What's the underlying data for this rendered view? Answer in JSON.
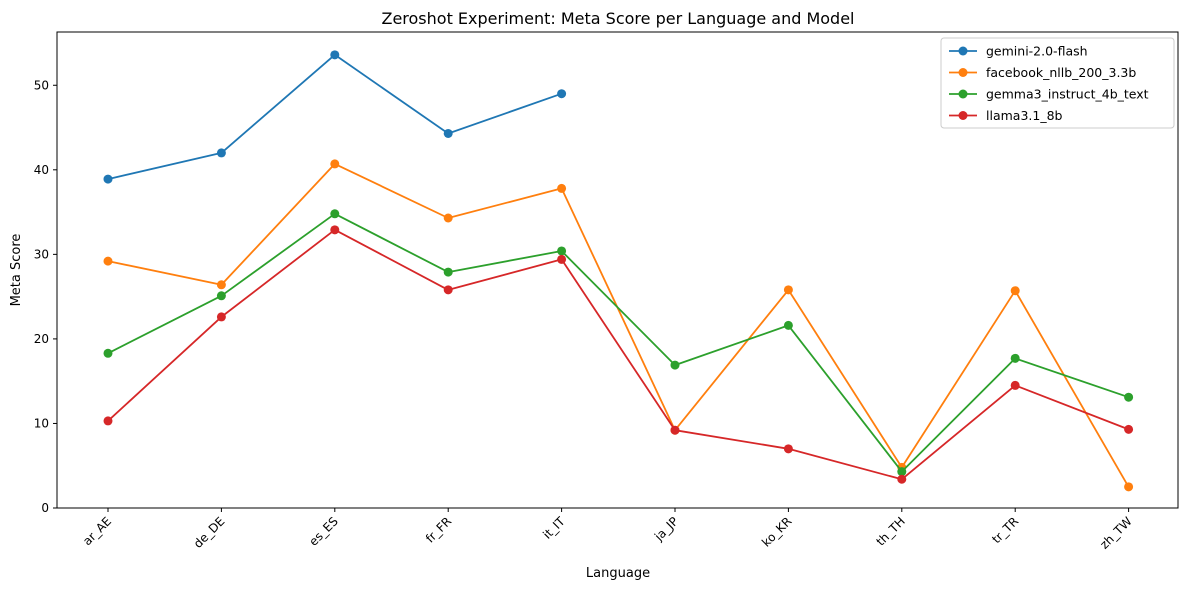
{
  "chart_data": {
    "type": "line",
    "title": "Zeroshot Experiment: Meta Score per Language and Model",
    "xlabel": "Language",
    "ylabel": "Meta Score",
    "categories": [
      "ar_AE",
      "de_DE",
      "es_ES",
      "fr_FR",
      "it_IT",
      "ja_JP",
      "ko_KR",
      "th_TH",
      "tr_TR",
      "zh_TW"
    ],
    "ylim": [
      0,
      56.3
    ],
    "yticks": [
      0,
      10,
      20,
      30,
      40,
      50
    ],
    "grid": false,
    "legend_position": "top-right",
    "series": [
      {
        "name": "gemini-2.0-flash",
        "color": "#1f77b4",
        "values": [
          38.9,
          42.0,
          53.6,
          44.3,
          49.0,
          null,
          null,
          null,
          null,
          null
        ]
      },
      {
        "name": "facebook_nllb_200_3.3b",
        "color": "#ff7f0e",
        "values": [
          29.2,
          26.4,
          40.7,
          34.3,
          37.8,
          9.2,
          25.8,
          4.8,
          25.7,
          2.5
        ]
      },
      {
        "name": "gemma3_instruct_4b_text",
        "color": "#2ca02c",
        "values": [
          18.3,
          25.1,
          34.8,
          27.9,
          30.4,
          16.9,
          21.6,
          4.3,
          17.7,
          13.1
        ]
      },
      {
        "name": "llama3.1_8b",
        "color": "#d62728",
        "values": [
          10.3,
          22.6,
          32.9,
          25.8,
          29.4,
          9.2,
          7.0,
          3.4,
          14.5,
          9.3
        ]
      }
    ]
  }
}
